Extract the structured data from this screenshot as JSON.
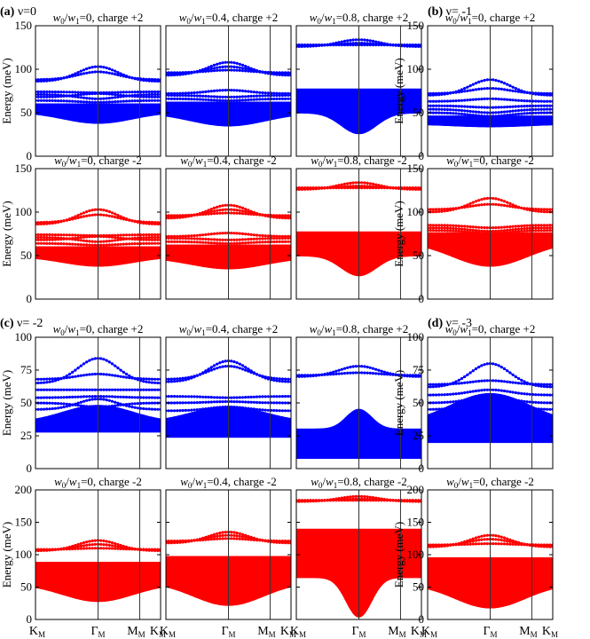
{
  "colors": {
    "positive": "#0000ff",
    "negative": "#ff0000",
    "axis": "#000000"
  },
  "common": {
    "ylabel": "Energy (meV)",
    "xticks": [
      {
        "base": "K",
        "sub": "M",
        "pos": 0.0
      },
      {
        "base": "Γ",
        "sub": "M",
        "pos": 0.5
      },
      {
        "base": "M",
        "sub": "M",
        "pos": 0.833
      },
      {
        "base": "K",
        "sub": "M",
        "pos": 1.0
      }
    ]
  },
  "panel_labels": [
    {
      "id": "a",
      "label": "(a)",
      "nu": "ν=0"
    },
    {
      "id": "b",
      "label": "(b)",
      "nu": "ν= -1"
    },
    {
      "id": "c",
      "label": "(c)",
      "nu": "ν= -2"
    },
    {
      "id": "d",
      "label": "(d)",
      "nu": "ν= -3"
    }
  ],
  "chart_data": [
    {
      "id": "a1",
      "type": "scatter",
      "group": "a",
      "ratio": "0",
      "charge": "+2",
      "color": "positive",
      "ylim": [
        0,
        150
      ],
      "yticks": [
        0,
        50,
        100,
        150
      ],
      "continuum": {
        "top": 60,
        "bottom_edge": 51,
        "bottom_center": 38,
        "dip_width": 0.28
      },
      "bands": [
        {
          "edge": 86,
          "center": 103
        },
        {
          "edge": 88,
          "center": 97
        },
        {
          "edge": 74,
          "center": 73
        },
        {
          "edge": 71,
          "center": 66
        },
        {
          "edge": 68,
          "center": 72
        },
        {
          "edge": 64,
          "center": 62
        }
      ]
    },
    {
      "id": "a2",
      "type": "scatter",
      "group": "a",
      "ratio": "0.4",
      "charge": "+2",
      "color": "positive",
      "ylim": [
        0,
        150
      ],
      "yticks": [
        0,
        50,
        100,
        150
      ],
      "continuum": {
        "top": 62,
        "bottom_edge": 50,
        "bottom_center": 35,
        "dip_width": 0.3
      },
      "bands": [
        {
          "edge": 93,
          "center": 108
        },
        {
          "edge": 95,
          "center": 103
        },
        {
          "edge": 96,
          "center": 99
        },
        {
          "edge": 72,
          "center": 76
        },
        {
          "edge": 70,
          "center": 68
        },
        {
          "edge": 66,
          "center": 64
        }
      ]
    },
    {
      "id": "a3",
      "type": "scatter",
      "group": "a",
      "ratio": "0.8",
      "charge": "+2",
      "color": "positive",
      "ylim": [
        0,
        150
      ],
      "yticks": [
        0,
        50,
        100,
        150
      ],
      "continuum": {
        "top": 77,
        "bottom_edge": 50,
        "bottom_center": 26,
        "dip_width": 0.14
      },
      "bands": [
        {
          "edge": 126,
          "center": 134
        },
        {
          "edge": 127,
          "center": 130
        },
        {
          "edge": 128,
          "center": 128
        }
      ]
    },
    {
      "id": "b1",
      "type": "scatter",
      "group": "b",
      "ratio": "0",
      "charge": "+2",
      "color": "positive",
      "ylim": [
        0,
        150
      ],
      "yticks": [
        0,
        50,
        100,
        150
      ],
      "continuum": {
        "top": 46,
        "bottom_edge": 37,
        "bottom_center": 34,
        "dip_width": 0.3
      },
      "bands": [
        {
          "edge": 70,
          "center": 88
        },
        {
          "edge": 72,
          "center": 78
        },
        {
          "edge": 63,
          "center": 66
        },
        {
          "edge": 58,
          "center": 56
        },
        {
          "edge": 54,
          "center": 50
        },
        {
          "edge": 50,
          "center": 46
        }
      ]
    },
    {
      "id": "a4",
      "type": "scatter",
      "group": "a",
      "ratio": "0",
      "charge": "-2",
      "color": "negative",
      "ylim": [
        0,
        150
      ],
      "yticks": [
        0,
        50,
        100,
        150
      ],
      "continuum": {
        "top": 60,
        "bottom_edge": 49,
        "bottom_center": 38,
        "dip_width": 0.28
      },
      "bands": [
        {
          "edge": 86,
          "center": 103
        },
        {
          "edge": 88,
          "center": 97
        },
        {
          "edge": 74,
          "center": 73
        },
        {
          "edge": 71,
          "center": 66
        },
        {
          "edge": 68,
          "center": 72
        },
        {
          "edge": 64,
          "center": 62
        }
      ]
    },
    {
      "id": "a5",
      "type": "scatter",
      "group": "a",
      "ratio": "0.4",
      "charge": "-2",
      "color": "negative",
      "ylim": [
        0,
        150
      ],
      "yticks": [
        0,
        50,
        100,
        150
      ],
      "continuum": {
        "top": 62,
        "bottom_edge": 48,
        "bottom_center": 35,
        "dip_width": 0.3
      },
      "bands": [
        {
          "edge": 93,
          "center": 108
        },
        {
          "edge": 95,
          "center": 103
        },
        {
          "edge": 96,
          "center": 99
        },
        {
          "edge": 72,
          "center": 76
        },
        {
          "edge": 70,
          "center": 68
        },
        {
          "edge": 66,
          "center": 64
        }
      ]
    },
    {
      "id": "a6",
      "type": "scatter",
      "group": "a",
      "ratio": "0.8",
      "charge": "-2",
      "color": "negative",
      "ylim": [
        0,
        150
      ],
      "yticks": [
        0,
        50,
        100,
        150
      ],
      "continuum": {
        "top": 77,
        "bottom_edge": 50,
        "bottom_center": 27,
        "dip_width": 0.14
      },
      "bands": [
        {
          "edge": 126,
          "center": 134
        },
        {
          "edge": 127,
          "center": 130
        },
        {
          "edge": 128,
          "center": 128
        }
      ]
    },
    {
      "id": "b2",
      "type": "scatter",
      "group": "b",
      "ratio": "0",
      "charge": "-2",
      "color": "negative",
      "ylim": [
        0,
        150
      ],
      "yticks": [
        0,
        50,
        100,
        150
      ],
      "continuum": {
        "top": 76,
        "bottom_edge": 66,
        "bottom_center": 38,
        "dip_width": 0.3
      },
      "bands": [
        {
          "edge": 100,
          "center": 116
        },
        {
          "edge": 103,
          "center": 109
        },
        {
          "edge": 85,
          "center": 82
        },
        {
          "edge": 82,
          "center": 78
        },
        {
          "edge": 79,
          "center": 76
        }
      ]
    },
    {
      "id": "c1",
      "type": "scatter",
      "group": "c",
      "ratio": "0",
      "charge": "+2",
      "color": "positive",
      "ylim": [
        0,
        100
      ],
      "yticks": [
        0,
        25,
        50,
        75,
        100
      ],
      "continuum": {
        "top": 35,
        "bump_top": 48,
        "bump_width": 0.28,
        "bottom_edge": 28,
        "bottom_center": 28,
        "dip_width": 0.3
      },
      "bands": [
        {
          "edge": 65,
          "center": 84
        },
        {
          "edge": 68,
          "center": 72
        },
        {
          "edge": 60,
          "center": 60
        },
        {
          "edge": 54,
          "center": 55
        },
        {
          "edge": 45,
          "center": 53
        },
        {
          "edge": 50,
          "center": 47
        }
      ]
    },
    {
      "id": "c2",
      "type": "scatter",
      "group": "c",
      "ratio": "0.4",
      "charge": "+2",
      "color": "positive",
      "ylim": [
        0,
        100
      ],
      "yticks": [
        0,
        25,
        50,
        75,
        100
      ],
      "continuum": {
        "top": 35,
        "bump_top": 47,
        "bump_width": 0.3,
        "bottom_edge": 24,
        "bottom_center": 24,
        "dip_width": 0.3
      },
      "bands": [
        {
          "edge": 66,
          "center": 82
        },
        {
          "edge": 68,
          "center": 78
        },
        {
          "edge": 55,
          "center": 54
        },
        {
          "edge": 50,
          "center": 51
        },
        {
          "edge": 44,
          "center": 47
        }
      ]
    },
    {
      "id": "c3",
      "type": "scatter",
      "group": "c",
      "ratio": "0.8",
      "charge": "+2",
      "color": "positive",
      "ylim": [
        0,
        100
      ],
      "yticks": [
        0,
        25,
        50,
        75,
        100
      ],
      "continuum": {
        "top": 30,
        "bump_top": 45,
        "bump_width": 0.1,
        "bottom_edge": 8,
        "bottom_center": 8,
        "dip_width": 0.3
      },
      "bands": [
        {
          "edge": 70,
          "center": 78
        },
        {
          "edge": 71,
          "center": 73
        }
      ]
    },
    {
      "id": "d1",
      "type": "scatter",
      "group": "d",
      "ratio": "0",
      "charge": "+2",
      "color": "positive",
      "ylim": [
        0,
        100
      ],
      "yticks": [
        0,
        25,
        50,
        75,
        100
      ],
      "continuum": {
        "top": 34,
        "bump_top": 57,
        "bump_width": 0.32,
        "bottom_edge": 20,
        "bottom_center": 20,
        "dip_width": 0.3
      },
      "bands": [
        {
          "edge": 62,
          "center": 80
        },
        {
          "edge": 64,
          "center": 67
        },
        {
          "edge": 56,
          "center": 60
        },
        {
          "edge": 50,
          "center": 55
        },
        {
          "edge": 45,
          "center": 52
        }
      ]
    },
    {
      "id": "c4",
      "type": "scatter",
      "group": "c",
      "ratio": "0",
      "charge": "-2",
      "color": "negative",
      "ylim": [
        0,
        200
      ],
      "yticks": [
        0,
        50,
        100,
        150,
        200
      ],
      "continuum": {
        "top": 88,
        "bottom_edge": 55,
        "bottom_center": 28,
        "dip_width": 0.28
      },
      "bands": [
        {
          "edge": 106,
          "center": 122
        },
        {
          "edge": 107,
          "center": 116
        },
        {
          "edge": 108,
          "center": 110
        }
      ]
    },
    {
      "id": "c5",
      "type": "scatter",
      "group": "c",
      "ratio": "0.4",
      "charge": "-2",
      "color": "negative",
      "ylim": [
        0,
        200
      ],
      "yticks": [
        0,
        50,
        100,
        150,
        200
      ],
      "continuum": {
        "top": 97,
        "bottom_edge": 58,
        "bottom_center": 22,
        "dip_width": 0.28
      },
      "bands": [
        {
          "edge": 118,
          "center": 135
        },
        {
          "edge": 120,
          "center": 130
        },
        {
          "edge": 121,
          "center": 125
        }
      ]
    },
    {
      "id": "c6",
      "type": "scatter",
      "group": "c",
      "ratio": "0.8",
      "charge": "-2",
      "color": "negative",
      "ylim": [
        0,
        200
      ],
      "yticks": [
        0,
        50,
        100,
        150,
        200
      ],
      "continuum": {
        "top": 139,
        "bottom_edge": 65,
        "bottom_center": 4,
        "dip_width": 0.1
      },
      "bands": [
        {
          "edge": 182,
          "center": 190
        },
        {
          "edge": 183,
          "center": 186
        },
        {
          "edge": 184,
          "center": 184
        }
      ]
    },
    {
      "id": "d2",
      "type": "scatter",
      "group": "d",
      "ratio": "0",
      "charge": "-2",
      "color": "negative",
      "ylim": [
        0,
        200
      ],
      "yticks": [
        0,
        50,
        100,
        150,
        200
      ],
      "continuum": {
        "top": 95,
        "bottom_edge": 55,
        "bottom_center": 18,
        "dip_width": 0.28
      },
      "bands": [
        {
          "edge": 112,
          "center": 130
        },
        {
          "edge": 114,
          "center": 124
        },
        {
          "edge": 115,
          "center": 117
        }
      ]
    }
  ]
}
